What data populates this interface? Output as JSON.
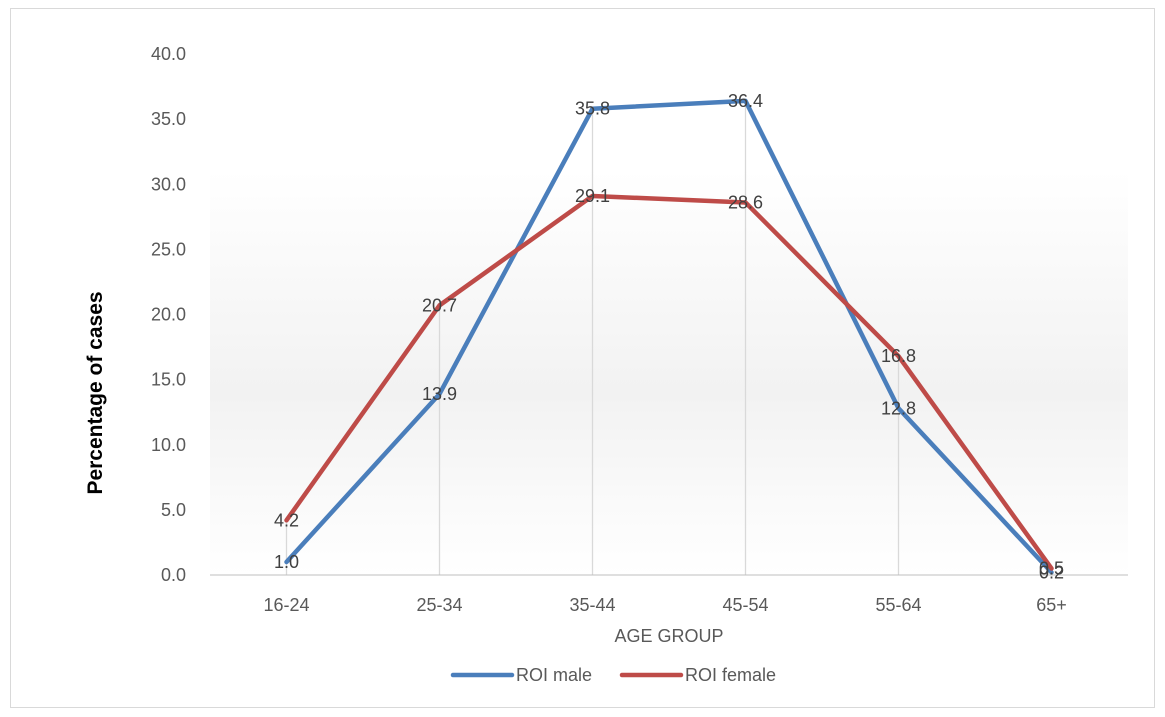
{
  "chart_data": {
    "type": "line",
    "categories": [
      "16-24",
      "25-34",
      "35-44",
      "45-54",
      "55-64",
      "65+"
    ],
    "series": [
      {
        "name": "ROI male",
        "values": [
          1.0,
          13.9,
          35.8,
          36.4,
          12.8,
          0.2
        ],
        "labels": [
          "1.0",
          "13.9",
          "35.8",
          "36.4",
          "12.8",
          "0.2"
        ],
        "color": "#4a7ebb"
      },
      {
        "name": "ROI female",
        "values": [
          4.2,
          20.7,
          29.1,
          28.6,
          16.8,
          0.5
        ],
        "labels": [
          "4.2",
          "20.7",
          "29.1",
          "28.6",
          "16.8",
          "0.5"
        ],
        "color": "#be4b48"
      }
    ],
    "xlabel": "AGE GROUP",
    "ylabel": "Percentage of cases",
    "ylim": [
      0,
      40
    ],
    "yticks": [
      "0.0",
      "5.0",
      "10.0",
      "15.0",
      "20.0",
      "25.0",
      "30.0",
      "35.0",
      "40.0"
    ],
    "legend_position": "bottom",
    "grid": "vertical drop lines at categories"
  }
}
